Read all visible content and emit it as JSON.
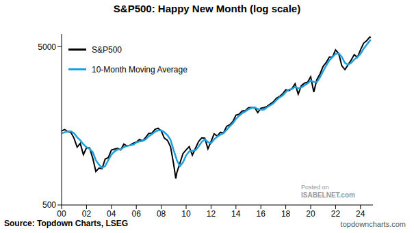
{
  "chart_data": {
    "type": "line",
    "title": "S&P500: Happy New Month (log scale)",
    "log": "y",
    "grid": false,
    "legend": "upper left",
    "x": [
      2000,
      2000.25,
      2000.5,
      2000.75,
      2001,
      2001.25,
      2001.5,
      2001.75,
      2002,
      2002.25,
      2002.5,
      2002.75,
      2003,
      2003.25,
      2003.5,
      2003.75,
      2004,
      2004.25,
      2004.5,
      2004.75,
      2005,
      2005.25,
      2005.5,
      2005.75,
      2006,
      2006.25,
      2006.5,
      2006.75,
      2007,
      2007.25,
      2007.5,
      2007.75,
      2008,
      2008.25,
      2008.5,
      2008.75,
      2009,
      2009.17,
      2009.25,
      2009.5,
      2009.75,
      2010,
      2010.25,
      2010.5,
      2010.75,
      2011,
      2011.25,
      2011.5,
      2011.75,
      2012,
      2012.25,
      2012.5,
      2012.75,
      2013,
      2013.25,
      2013.5,
      2013.75,
      2014,
      2014.25,
      2014.5,
      2014.75,
      2015,
      2015.25,
      2015.5,
      2015.75,
      2016,
      2016.25,
      2016.5,
      2016.75,
      2017,
      2017.25,
      2017.5,
      2017.75,
      2018,
      2018.25,
      2018.5,
      2018.75,
      2019,
      2019.25,
      2019.5,
      2019.75,
      2020,
      2020.25,
      2020.5,
      2020.75,
      2021,
      2021.25,
      2021.5,
      2021.75,
      2022,
      2022.25,
      2022.5,
      2022.75,
      2023,
      2023.25,
      2023.5,
      2023.75,
      2024,
      2024.25,
      2024.5,
      2024.75,
      2024.83
    ],
    "series": [
      {
        "name": "S&P500",
        "color": "#000000",
        "values": [
          1469,
          1499,
          1455,
          1436,
          1320,
          1160,
          1224,
          1040,
          1148,
          1147,
          989,
          815,
          855,
          848,
          975,
          996,
          1112,
          1126,
          1141,
          1115,
          1212,
          1181,
          1191,
          1228,
          1248,
          1295,
          1270,
          1336,
          1418,
          1420,
          1503,
          1527,
          1468,
          1322,
          1280,
          1166,
          903,
          735,
          798,
          919,
          1057,
          1115,
          1169,
          1031,
          1141,
          1258,
          1326,
          1321,
          1131,
          1258,
          1408,
          1362,
          1441,
          1426,
          1569,
          1606,
          1682,
          1848,
          1872,
          1960,
          1972,
          2059,
          2068,
          2063,
          1920,
          2044,
          2060,
          2099,
          2168,
          2239,
          2363,
          2423,
          2519,
          2674,
          2641,
          2718,
          2914,
          2507,
          2834,
          2942,
          2977,
          3231,
          2585,
          3100,
          3363,
          3756,
          3973,
          4298,
          4308,
          4766,
          4530,
          3785,
          3586,
          3840,
          4109,
          4450,
          4288,
          4770,
          5254,
          5460,
          5762,
          5705
        ]
      },
      {
        "name": "10-Month Moving Average",
        "color": "#1ba1e2",
        "values": [
          1420,
          1440,
          1460,
          1460,
          1420,
          1340,
          1280,
          1210,
          1160,
          1130,
          1080,
          960,
          900,
          860,
          880,
          960,
          1040,
          1090,
          1120,
          1120,
          1160,
          1180,
          1190,
          1200,
          1240,
          1260,
          1270,
          1300,
          1360,
          1400,
          1450,
          1480,
          1480,
          1440,
          1380,
          1290,
          1110,
          1010,
          960,
          880,
          930,
          1030,
          1090,
          1100,
          1110,
          1170,
          1250,
          1300,
          1250,
          1230,
          1300,
          1350,
          1390,
          1420,
          1490,
          1570,
          1640,
          1750,
          1830,
          1900,
          1950,
          2010,
          2050,
          2070,
          2020,
          2000,
          2000,
          2070,
          2130,
          2190,
          2300,
          2390,
          2460,
          2580,
          2680,
          2700,
          2790,
          2730,
          2760,
          2850,
          2930,
          3050,
          3000,
          2990,
          3200,
          3500,
          3800,
          4100,
          4300,
          4500,
          4550,
          4300,
          3950,
          3850,
          3950,
          4150,
          4300,
          4500,
          4850,
          5150,
          5450,
          5540
        ]
      }
    ],
    "xlim": [
      2000,
      2025
    ],
    "xticks": [
      {
        "value": 2000,
        "label": "00"
      },
      {
        "value": 2002,
        "label": "02"
      },
      {
        "value": 2004,
        "label": "04"
      },
      {
        "value": 2006,
        "label": "06"
      },
      {
        "value": 2008,
        "label": "08"
      },
      {
        "value": 2010,
        "label": "10"
      },
      {
        "value": 2012,
        "label": "12"
      },
      {
        "value": 2014,
        "label": "14"
      },
      {
        "value": 2016,
        "label": "16"
      },
      {
        "value": 2018,
        "label": "18"
      },
      {
        "value": 2020,
        "label": "20"
      },
      {
        "value": 2022,
        "label": "22"
      },
      {
        "value": 2024,
        "label": "24"
      }
    ],
    "ylim": [
      500,
      6000
    ],
    "yticks": [
      500,
      5000
    ],
    "annotations": [
      "Source: Topdown Charts, LSEG",
      "topdowncharts.com",
      "Posted on",
      "ISABELNET.com"
    ]
  }
}
